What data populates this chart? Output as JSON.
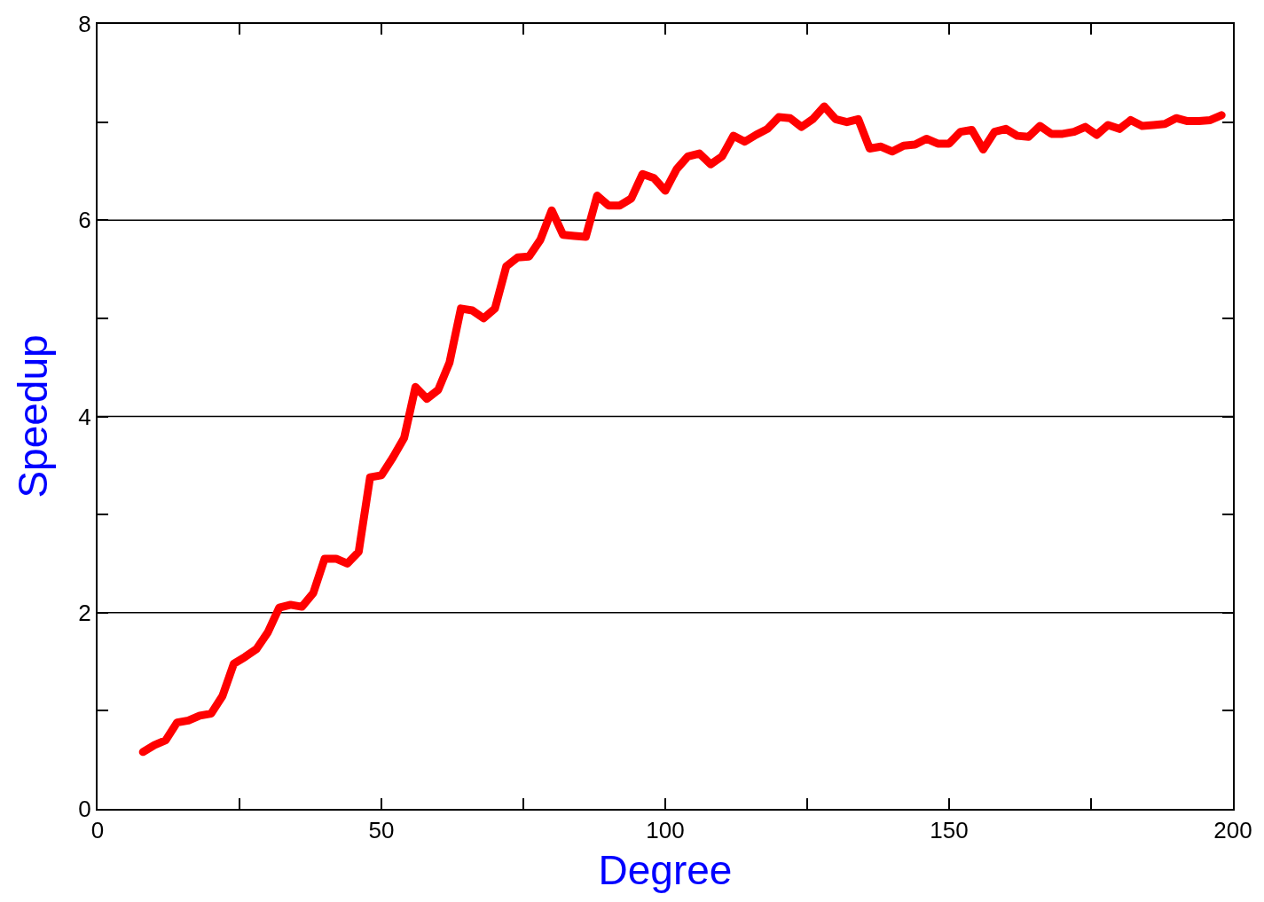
{
  "chart_data": {
    "type": "line",
    "xlabel": "Degree",
    "ylabel": "Speedup",
    "x": [
      8,
      10,
      12,
      14,
      16,
      18,
      20,
      22,
      24,
      26,
      28,
      30,
      32,
      34,
      36,
      38,
      40,
      42,
      44,
      46,
      48,
      50,
      52,
      54,
      56,
      58,
      60,
      62,
      64,
      66,
      68,
      70,
      72,
      74,
      76,
      78,
      80,
      82,
      84,
      86,
      88,
      90,
      92,
      94,
      96,
      98,
      100,
      102,
      104,
      106,
      108,
      110,
      112,
      114,
      116,
      118,
      120,
      122,
      124,
      126,
      128,
      130,
      132,
      134,
      136,
      138,
      140,
      142,
      144,
      146,
      148,
      150,
      152,
      154,
      156,
      158,
      160,
      162,
      164,
      166,
      168,
      170,
      172,
      174,
      176,
      178,
      180,
      182,
      184,
      186,
      188,
      190,
      192,
      194,
      196,
      198
    ],
    "series": [
      {
        "color": "#ff0000",
        "values": [
          0.58,
          0.65,
          0.7,
          0.88,
          0.9,
          0.95,
          0.97,
          1.15,
          1.48,
          1.55,
          1.63,
          1.8,
          2.05,
          2.08,
          2.06,
          2.2,
          2.55,
          2.55,
          2.5,
          2.62,
          3.38,
          3.4,
          3.58,
          3.78,
          4.3,
          4.18,
          4.27,
          4.55,
          5.1,
          5.08,
          5.0,
          5.1,
          5.53,
          5.62,
          5.63,
          5.8,
          6.1,
          5.85,
          5.84,
          5.83,
          6.25,
          6.15,
          6.15,
          6.22,
          6.47,
          6.43,
          6.3,
          6.52,
          6.65,
          6.68,
          6.57,
          6.65,
          6.86,
          6.8,
          6.87,
          6.93,
          7.05,
          7.04,
          6.95,
          7.03,
          7.16,
          7.03,
          7.0,
          7.03,
          6.73,
          6.75,
          6.7,
          6.76,
          6.77,
          6.83,
          6.78,
          6.78,
          6.9,
          6.92,
          6.72,
          6.9,
          6.93,
          6.86,
          6.85,
          6.96,
          6.88,
          6.88,
          6.9,
          6.95,
          6.87,
          6.97,
          6.93,
          7.02,
          6.96,
          6.97,
          6.98,
          7.04,
          7.01,
          7.01,
          7.02,
          7.07
        ]
      }
    ],
    "xlim": [
      0,
      200
    ],
    "xticks": [
      0,
      {
        "value": 25,
        "label": null
      },
      50,
      {
        "value": 75,
        "label": null
      },
      100,
      {
        "value": 125,
        "label": null
      },
      150,
      {
        "value": 175,
        "label": null
      },
      200
    ],
    "ylim": [
      0,
      8
    ],
    "yticks": [
      0,
      {
        "value": 1,
        "label": null
      },
      2,
      {
        "value": 3,
        "label": null
      },
      4,
      {
        "value": 5,
        "label": null
      },
      6,
      {
        "value": 7,
        "label": null
      },
      8
    ],
    "grid": "y",
    "line_style": "solid"
  }
}
